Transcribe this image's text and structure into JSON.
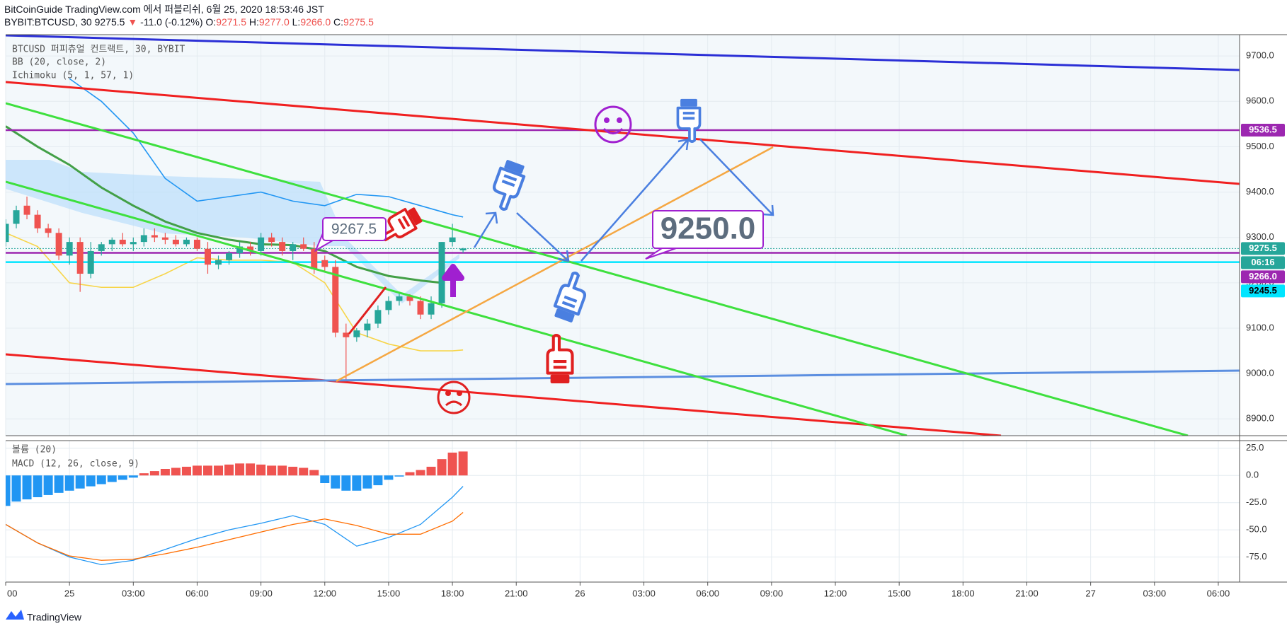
{
  "header": {
    "title": "BitCoinGuide TradingView.com 에서 퍼블리쉬, 6월 25, 2020 18:53:46 JST",
    "symbol": "BYBIT:BTCUSD, 30",
    "last": "9275.5",
    "change": "▼",
    "change_value": "-11.0 (-0.12%)",
    "ohlc": [
      [
        "O:",
        "9271.5"
      ],
      [
        "H:",
        "9277.0"
      ],
      [
        "L:",
        "9266.0"
      ],
      [
        "C:",
        "9275.5"
      ]
    ]
  },
  "legend": [
    "BTCUSD 퍼피츄얼 컨트랙트, 30, BYBIT",
    "BB (20, close, 2)",
    "Ichimoku (5, 1, 57, 1)",
    "볼륨 (20)",
    "MACD (12, 26, close, 9)"
  ],
  "annotations": {
    "callout_1": "9267.5",
    "callout_2": "9250.0"
  },
  "footer": "TradingView",
  "chart_data": [
    {
      "type": "candlestick",
      "x": [
        -3,
        -2.5,
        -2,
        -1.5,
        -1,
        -0.5,
        0,
        0.5,
        1,
        1.5,
        2,
        2.5,
        3,
        3.5,
        4,
        4.5,
        5,
        5.5,
        6,
        6.5,
        7,
        7.5,
        8,
        8.5,
        9,
        9.5,
        10,
        10.5,
        11,
        11.5,
        12,
        12.5,
        13,
        13.5,
        14,
        14.5,
        15,
        15.5,
        16,
        16.5,
        17,
        17.5,
        18,
        18.5
      ],
      "open": [
        9290,
        9330,
        9370,
        9350,
        9320,
        9310,
        9260,
        9290,
        9220,
        9270,
        9285,
        9295,
        9285,
        9290,
        9305,
        9300,
        9295,
        9285,
        9295,
        9275,
        9240,
        9250,
        9265,
        9280,
        9270,
        9300,
        9290,
        9270,
        9285,
        9275,
        9250,
        9235,
        9090,
        9080,
        9095,
        9110,
        9140,
        9160,
        9170,
        9160,
        9130,
        9155,
        9290,
        9271.5
      ],
      "high": [
        9340,
        9370,
        9390,
        9360,
        9330,
        9320,
        9300,
        9300,
        9290,
        9290,
        9300,
        9310,
        9300,
        9320,
        9320,
        9310,
        9305,
        9300,
        9300,
        9290,
        9260,
        9270,
        9290,
        9290,
        9310,
        9310,
        9300,
        9290,
        9300,
        9290,
        9260,
        9250,
        9110,
        9100,
        9120,
        9150,
        9170,
        9180,
        9175,
        9170,
        9170,
        9290,
        9330,
        9277
      ],
      "low": [
        9280,
        9320,
        9340,
        9310,
        9300,
        9250,
        9240,
        9180,
        9210,
        9260,
        9270,
        9280,
        9270,
        9280,
        9290,
        9285,
        9280,
        9280,
        9270,
        9220,
        9230,
        9240,
        9255,
        9260,
        9260,
        9280,
        9260,
        9250,
        9270,
        9220,
        9225,
        9080,
        8983,
        9070,
        9080,
        9100,
        9130,
        9150,
        9150,
        9120,
        9120,
        9145,
        9280,
        9266
      ],
      "close": [
        9330,
        9360,
        9350,
        9320,
        9310,
        9260,
        9290,
        9220,
        9270,
        9285,
        9295,
        9285,
        9290,
        9305,
        9300,
        9295,
        9285,
        9295,
        9275,
        9240,
        9250,
        9265,
        9280,
        9270,
        9300,
        9290,
        9270,
        9285,
        9275,
        9230,
        9235,
        9090,
        9080,
        9095,
        9110,
        9140,
        9160,
        9170,
        9160,
        9130,
        9155,
        9290,
        9300,
        9275.5
      ],
      "up_color": "#26a69a",
      "down_color": "#ef5350",
      "series": [
        {
          "color": "#2196f3",
          "x": [
            0,
            1.5,
            3,
            4.5,
            6,
            7.5,
            9,
            10.5,
            12,
            13.5,
            15,
            16.5,
            18,
            18.5
          ],
          "values": [
            9650,
            9600,
            9530,
            9430,
            9380,
            9390,
            9400,
            9380,
            9370,
            9395,
            9390,
            9370,
            9350,
            9345
          ]
        },
        {
          "color": "#f7d54a",
          "x": [
            -3,
            -1.5,
            0,
            1.5,
            3,
            4.5,
            6,
            7.5,
            9,
            10.5,
            12,
            13.5,
            15,
            16.5,
            18,
            18.5
          ],
          "values": [
            9310,
            9280,
            9200,
            9190,
            9190,
            9220,
            9255,
            9250,
            9250,
            9245,
            9200,
            9090,
            9065,
            9050,
            9050,
            9052
          ]
        },
        {
          "color": "#43a047",
          "x": [
            -3,
            -1.5,
            0,
            1.5,
            3,
            4.5,
            6,
            7.5,
            9,
            10.5,
            12,
            13.5,
            15,
            16.5,
            17.5
          ],
          "values": [
            9545,
            9500,
            9460,
            9410,
            9370,
            9335,
            9310,
            9295,
            9285,
            9283,
            9270,
            9235,
            9215,
            9205,
            9200
          ]
        }
      ],
      "price_tags": [
        {
          "value": 9536.5,
          "label": "9536.5",
          "color": "#9c27b0",
          "text_color": "#ffffff",
          "line": "solid"
        },
        {
          "value": 9275.5,
          "label": "9275.5",
          "color": "#26a69a",
          "text_color": "#ffffff",
          "line": "dotted",
          "countdown": "06:16"
        },
        {
          "value": 9266.0,
          "label": "9266.0",
          "color": "#9c27b0",
          "text_color": "#ffffff",
          "line": "solid"
        },
        {
          "value": 9245.5,
          "label": "9245.5",
          "color": "#00e5ff",
          "text_color": "#000000",
          "line": "solid"
        }
      ],
      "xlim": [
        -3,
        55
      ],
      "ylim": [
        8863,
        9747
      ],
      "yticks": [
        {
          "value": 8900,
          "label": "8900.0"
        },
        {
          "value": 9000,
          "label": "9000.0"
        },
        {
          "value": 9100,
          "label": "9100.0"
        },
        {
          "value": 9200,
          "label": "9200.0"
        },
        {
          "value": 9300,
          "label": "9300.0"
        },
        {
          "value": 9400,
          "label": "9400.0"
        },
        {
          "value": 9500,
          "label": "9500.0"
        },
        {
          "value": 9600,
          "label": "9600.0"
        },
        {
          "value": 9700,
          "label": "9700.0"
        }
      ],
      "grid": true
    },
    {
      "type": "macd",
      "x": [
        -3,
        -2.5,
        -2,
        -1.5,
        -1,
        -0.5,
        0,
        0.5,
        1,
        1.5,
        2,
        2.5,
        3,
        3.5,
        4,
        4.5,
        5,
        5.5,
        6,
        6.5,
        7,
        7.5,
        8,
        8.5,
        9,
        9.5,
        10,
        10.5,
        11,
        11.5,
        12,
        12.5,
        13,
        13.5,
        14,
        14.5,
        15,
        15.5,
        16,
        16.5,
        17,
        17.5,
        18,
        18.5
      ],
      "values": [
        -28,
        -24,
        -22,
        -20,
        -18,
        -16,
        -14,
        -12,
        -10,
        -8,
        -6,
        -4,
        -2,
        2,
        4,
        6,
        7,
        8,
        9,
        9,
        9,
        10,
        11,
        11,
        10,
        9,
        9,
        8,
        7,
        5,
        -7,
        -12,
        -14,
        -14,
        -12,
        -9,
        -4,
        -1,
        3,
        5,
        8,
        15,
        21,
        22
      ],
      "pos_color": "#ef5350",
      "neg_color": "#2196f3",
      "series": [
        {
          "color": "#2196f3",
          "x": [
            -3,
            -1.5,
            0,
            1.5,
            3,
            4.5,
            6,
            7.5,
            9,
            10.5,
            12,
            13.5,
            15,
            16.5,
            18,
            18.5
          ],
          "values": [
            -45,
            -62,
            -75,
            -82,
            -78,
            -68,
            -58,
            -50,
            -44,
            -37,
            -45,
            -65,
            -57,
            -45,
            -20,
            -10
          ]
        },
        {
          "color": "#ff6d00",
          "x": [
            -3,
            -1.5,
            0,
            1.5,
            3,
            4.5,
            6,
            7.5,
            9,
            10.5,
            12,
            13.5,
            15,
            16.5,
            18,
            18.5
          ],
          "values": [
            -45,
            -62,
            -74,
            -78,
            -77,
            -72,
            -66,
            -59,
            -52,
            -45,
            -40,
            -46,
            -54,
            -54,
            -42,
            -34
          ]
        }
      ],
      "xlim": [
        -3,
        55
      ],
      "ylim": [
        -98,
        32
      ],
      "yticks": [
        {
          "value": 25,
          "label": "25.0"
        },
        {
          "value": 0,
          "label": "0.0"
        },
        {
          "value": -25,
          "label": "-25.0"
        },
        {
          "value": -50,
          "label": "-50.0"
        },
        {
          "value": -75,
          "label": "-75.0"
        }
      ],
      "xticks": [
        {
          "value": -3,
          "label": "00"
        },
        {
          "value": 0,
          "label": "25"
        },
        {
          "value": 3,
          "label": "03:00"
        },
        {
          "value": 6,
          "label": "06:00"
        },
        {
          "value": 9,
          "label": "09:00"
        },
        {
          "value": 12,
          "label": "12:00"
        },
        {
          "value": 15,
          "label": "15:00"
        },
        {
          "value": 18,
          "label": "18:00"
        },
        {
          "value": 21,
          "label": "21:00"
        },
        {
          "value": 24,
          "label": "26"
        },
        {
          "value": 27,
          "label": "03:00"
        },
        {
          "value": 30,
          "label": "06:00"
        },
        {
          "value": 33,
          "label": "09:00"
        },
        {
          "value": 36,
          "label": "12:00"
        },
        {
          "value": 39,
          "label": "15:00"
        },
        {
          "value": 42,
          "label": "18:00"
        },
        {
          "value": 45,
          "label": "21:00"
        },
        {
          "value": 48,
          "label": "27"
        },
        {
          "value": 51,
          "label": "03:00"
        },
        {
          "value": 54,
          "label": "06:00"
        }
      ],
      "grid": true
    }
  ]
}
